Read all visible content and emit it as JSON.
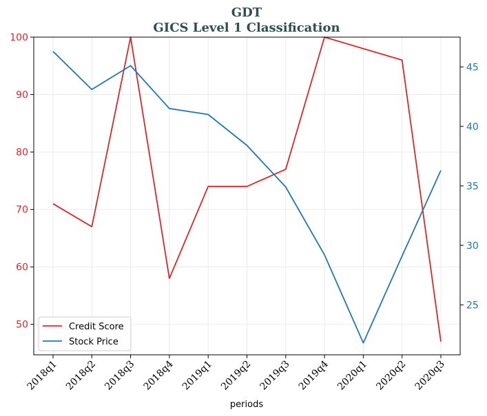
{
  "chart_data": {
    "type": "line",
    "title": "GDT",
    "subtitle": "GICS Level 1 Classification",
    "xlabel": "periods",
    "categories": [
      "2018q1",
      "2018q2",
      "2018q3",
      "2018q4",
      "2019q1",
      "2019q2",
      "2019q3",
      "2019q4",
      "2020q1",
      "2020q2",
      "2020q3"
    ],
    "series": [
      {
        "name": "Credit Score",
        "axis": "left",
        "color": "#d62728",
        "values": [
          71,
          67,
          100,
          58,
          74,
          74,
          77,
          100,
          98,
          96,
          47
        ]
      },
      {
        "name": "Stock Price",
        "axis": "right",
        "color": "#1f77b4",
        "values": [
          46.3,
          43.1,
          45.1,
          41.5,
          41.0,
          38.4,
          34.9,
          29.2,
          21.8,
          29.1,
          36.3
        ]
      }
    ],
    "ylim_left": [
      44.7,
      100
    ],
    "yticks_left": [
      50,
      60,
      70,
      80,
      90,
      100
    ],
    "ylim_right": [
      20.8,
      47.5
    ],
    "yticks_right": [
      25,
      30,
      35,
      40,
      45
    ],
    "grid": true,
    "legend_position": "lower-left"
  }
}
